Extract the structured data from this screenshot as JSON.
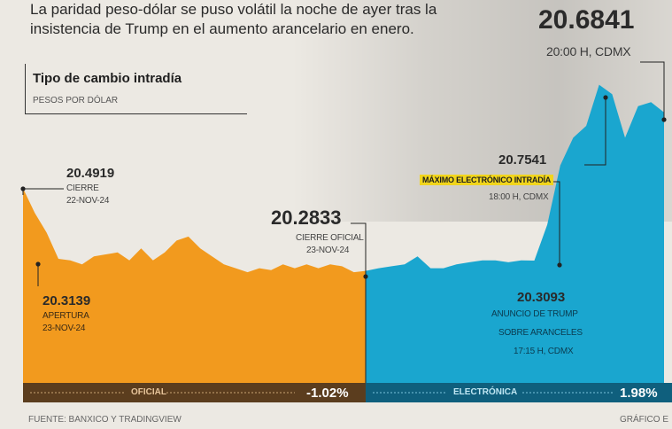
{
  "intro_text": "La paridad peso-dólar se puso volátil la noche de ayer tras la insistencia de Trump en el aumento arancelario en enero.",
  "headline_value": "20.6841",
  "headline_time": "20:00 H, CDMX",
  "box_title": "Tipo de cambio intradía",
  "box_subtitle": "PESOS POR DÓLAR",
  "annotations": {
    "cierre_value": "20.4919",
    "cierre_label": "CIERRE",
    "cierre_date": "22-NOV-24",
    "apertura_value": "20.3139",
    "apertura_label": "APERTURA",
    "apertura_date": "23-NOV-24",
    "oficial_value": "20.2833",
    "oficial_label": "CIERRE OFICIAL",
    "oficial_date": "23-NOV-24",
    "maximo_value": "20.7541",
    "maximo_label": "MÁXIMO ELECTRÓNICO INTRADÍA",
    "maximo_time": "18:00 H, CDMX",
    "anuncio_value": "20.3093",
    "anuncio_label1": "ANUNCIO DE TRUMP",
    "anuncio_label2": "SOBRE ARANCELES",
    "anuncio_time": "17:15 H, CDMX"
  },
  "bars": {
    "oficial_label": "OFICIAL",
    "oficial_pct": "-1.02%",
    "electronica_label": "ELECTRÓNICA",
    "electronica_pct": "1.98%"
  },
  "footer": {
    "source": "FUENTE: BANXICO Y TRADINGVIEW",
    "credit": "GRÁFICO E"
  },
  "colors": {
    "oficial": "#f29a1e",
    "electronica": "#1aa6cf",
    "bar_oficial": "#5b3d1e",
    "bar_electronica": "#0f5f7d"
  },
  "chart_data": {
    "type": "area",
    "series": [
      {
        "name": "OFICIAL",
        "values": [
          20.4919,
          20.43,
          20.38,
          20.3139,
          20.31,
          20.3,
          20.32,
          20.325,
          20.33,
          20.31,
          20.34,
          20.31,
          20.33,
          20.36,
          20.37,
          20.34,
          20.32,
          20.3,
          20.29,
          20.28,
          20.29,
          20.285,
          20.3,
          20.29,
          20.3,
          20.29,
          20.3,
          20.295,
          20.28,
          20.2833
        ]
      },
      {
        "name": "ELECTRÓNICA",
        "values": [
          20.2833,
          20.29,
          20.295,
          20.3,
          20.32,
          20.29,
          20.29,
          20.3,
          20.305,
          20.31,
          20.31,
          20.305,
          20.31,
          20.3093,
          20.4,
          20.55,
          20.62,
          20.65,
          20.7541,
          20.73,
          20.62,
          20.7,
          20.71,
          20.6841
        ]
      }
    ],
    "annotated_points": [
      {
        "label": "CIERRE 22-NOV-24",
        "value": 20.4919
      },
      {
        "label": "APERTURA 23-NOV-24",
        "value": 20.3139
      },
      {
        "label": "CIERRE OFICIAL 23-NOV-24",
        "value": 20.2833
      },
      {
        "label": "ANUNCIO DE TRUMP SOBRE ARANCELES 17:15 H, CDMX",
        "value": 20.3093
      },
      {
        "label": "MÁXIMO ELECTRÓNICO INTRADÍA 18:00 H, CDMX",
        "value": 20.7541
      },
      {
        "label": "20:00 H, CDMX",
        "value": 20.6841
      }
    ],
    "ylim": [
      20.0,
      20.78
    ]
  }
}
